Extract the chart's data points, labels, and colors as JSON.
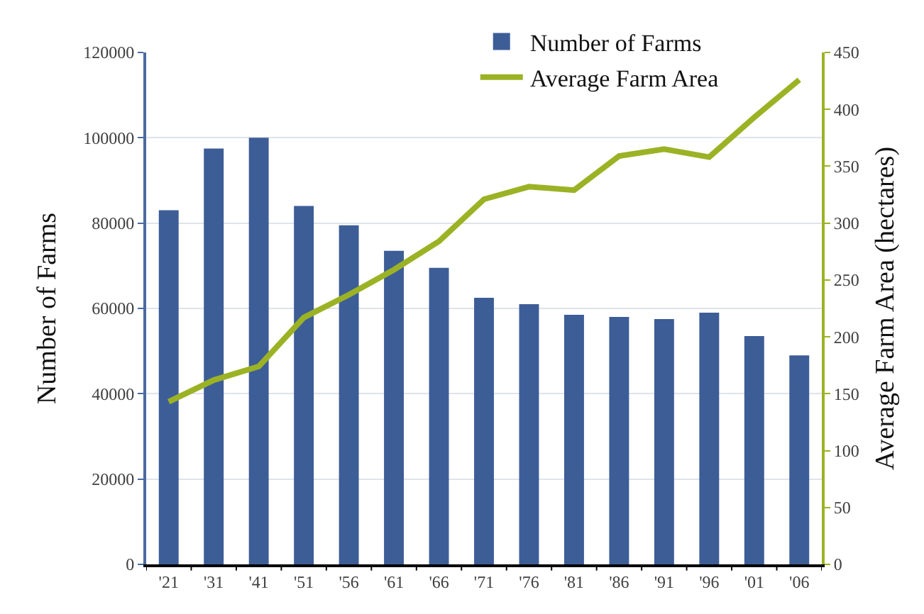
{
  "chart_data": {
    "type": "bar",
    "categories": [
      "'21",
      "'31",
      "'41",
      "'51",
      "'56",
      "'61",
      "'66",
      "'71",
      "'76",
      "'81",
      "'86",
      "'91",
      "'96",
      "'01",
      "'06"
    ],
    "series": [
      {
        "name": "Number of Farms",
        "color": "#3d5d97",
        "values": [
          83000,
          97500,
          100000,
          84000,
          79500,
          73500,
          69500,
          62500,
          61000,
          58500,
          58000,
          57500,
          59000,
          53500,
          49000
        ]
      },
      {
        "name": "Average Farm Area",
        "type": "line",
        "axis": "y2",
        "color": "#9cb225",
        "values": [
          143,
          162,
          174,
          217,
          237,
          259,
          284,
          321,
          332,
          329,
          359,
          365,
          358,
          393,
          426
        ]
      }
    ],
    "ylabel": "Number of Farms",
    "y2label": "Average Farm Area (hectares)",
    "ylim": [
      0,
      120000
    ],
    "yticks": [
      0,
      20000,
      40000,
      60000,
      80000,
      100000,
      120000
    ],
    "y2lim": [
      0,
      450
    ],
    "y2ticks": [
      0,
      50,
      100,
      150,
      200,
      250,
      300,
      350,
      400,
      450
    ],
    "grid": "y",
    "legend": "top right"
  }
}
